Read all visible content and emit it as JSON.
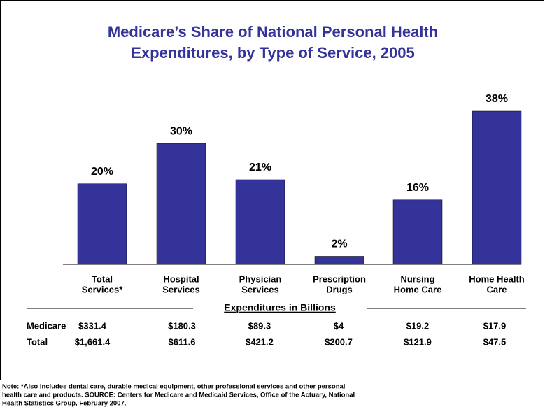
{
  "chart_data": {
    "type": "bar",
    "title": [
      "Medicare’s Share of National Personal Health",
      "Expenditures, by Type of Service, 2005"
    ],
    "categories": [
      [
        "Total",
        "Services*"
      ],
      [
        "Hospital",
        "Services"
      ],
      [
        "Physician",
        "Services"
      ],
      [
        "Prescription",
        "Drugs"
      ],
      [
        "Nursing",
        "Home Care"
      ],
      [
        "Home Health",
        "Care"
      ]
    ],
    "values": [
      20,
      30,
      21,
      2,
      16,
      38
    ],
    "value_labels": [
      "20%",
      "30%",
      "21%",
      "2%",
      "16%",
      "38%"
    ],
    "color": "#333399"
  },
  "table": {
    "header": "Expenditures in Billions",
    "rows": [
      [
        "Medicare",
        "$331.4",
        "$180.3",
        "$89.3",
        "$4",
        "$19.2",
        "$17.9"
      ],
      [
        "Total",
        "$1,661.4",
        "$611.6",
        "$421.2",
        "$200.7",
        "$121.9",
        "$47.5"
      ]
    ]
  },
  "note": [
    "Note: *Also includes dental care, durable medical equipment, other professional services and other personal",
    "health care and products.  SOURCE: Centers for Medicare and Medicaid Services, Office of the Actuary, National",
    "Health Statistics Group, February 2007."
  ]
}
